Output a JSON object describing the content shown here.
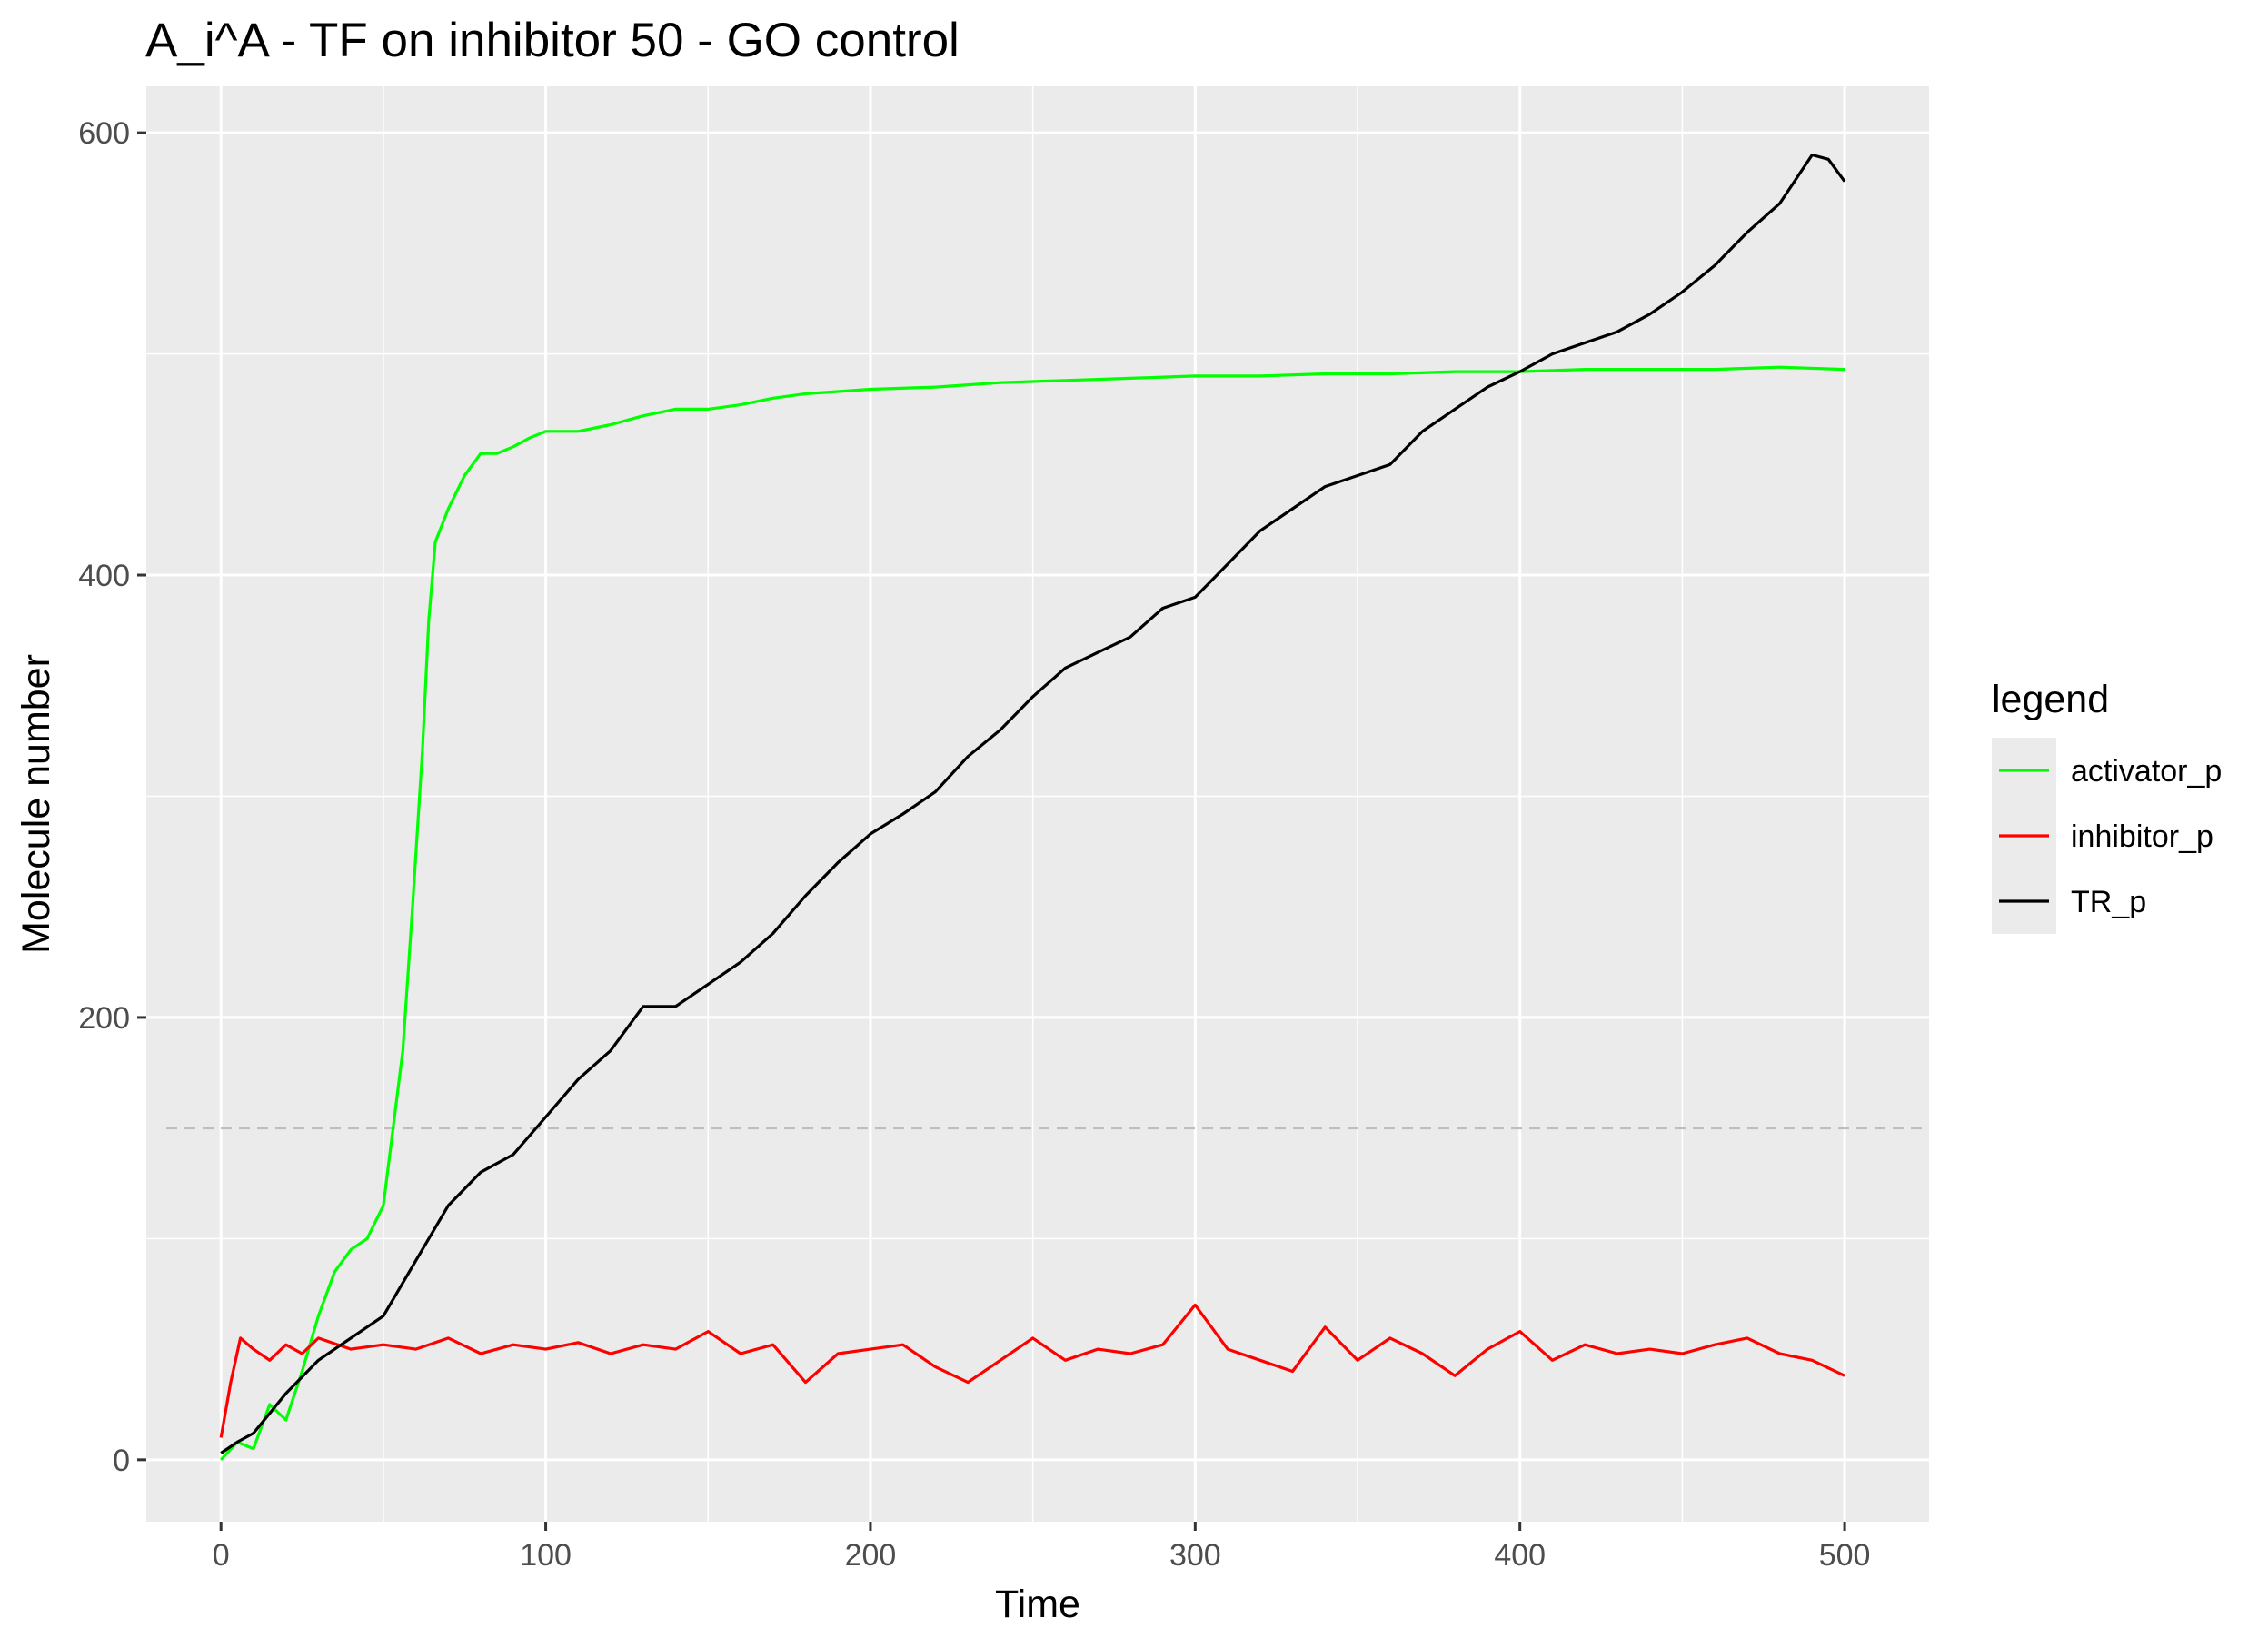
{
  "chart_data": {
    "type": "line",
    "title": "A_i^A - TF on inhibitor 50 - GO control",
    "xlabel": "Time",
    "ylabel": "Molecule number",
    "xlim": [
      -23,
      526
    ],
    "ylim": [
      -28,
      621
    ],
    "x_ticks": [
      0,
      100,
      200,
      300,
      400,
      500
    ],
    "y_ticks": [
      0,
      200,
      400,
      600
    ],
    "x_tick_labels": [
      "0",
      "100",
      "200",
      "300",
      "400",
      "500"
    ],
    "y_tick_labels": [
      "0",
      "200",
      "400",
      "600"
    ],
    "grid": true,
    "reference_line": {
      "y": 150,
      "style": "dashed",
      "color": "#bebebe"
    },
    "legend": {
      "title": "legend",
      "position": "right"
    },
    "series": [
      {
        "name": "activator_p",
        "color": "#00ff00",
        "points": [
          [
            0,
            0
          ],
          [
            5,
            8
          ],
          [
            10,
            5
          ],
          [
            15,
            25
          ],
          [
            20,
            18
          ],
          [
            25,
            40
          ],
          [
            30,
            65
          ],
          [
            35,
            85
          ],
          [
            40,
            95
          ],
          [
            45,
            100
          ],
          [
            50,
            115
          ],
          [
            53,
            150
          ],
          [
            56,
            185
          ],
          [
            59,
            250
          ],
          [
            62,
            320
          ],
          [
            64,
            380
          ],
          [
            66,
            415
          ],
          [
            70,
            430
          ],
          [
            75,
            445
          ],
          [
            80,
            455
          ],
          [
            85,
            455
          ],
          [
            90,
            458
          ],
          [
            95,
            462
          ],
          [
            100,
            465
          ],
          [
            110,
            465
          ],
          [
            120,
            468
          ],
          [
            130,
            472
          ],
          [
            140,
            475
          ],
          [
            150,
            475
          ],
          [
            160,
            477
          ],
          [
            170,
            480
          ],
          [
            180,
            482
          ],
          [
            190,
            483
          ],
          [
            200,
            484
          ],
          [
            220,
            485
          ],
          [
            240,
            487
          ],
          [
            260,
            488
          ],
          [
            280,
            489
          ],
          [
            300,
            490
          ],
          [
            320,
            490
          ],
          [
            340,
            491
          ],
          [
            360,
            491
          ],
          [
            380,
            492
          ],
          [
            400,
            492
          ],
          [
            420,
            493
          ],
          [
            440,
            493
          ],
          [
            460,
            493
          ],
          [
            480,
            494
          ],
          [
            500,
            493
          ]
        ]
      },
      {
        "name": "inhibitor_p",
        "color": "#ff0000",
        "points": [
          [
            0,
            10
          ],
          [
            3,
            35
          ],
          [
            6,
            55
          ],
          [
            10,
            50
          ],
          [
            15,
            45
          ],
          [
            20,
            52
          ],
          [
            25,
            48
          ],
          [
            30,
            55
          ],
          [
            40,
            50
          ],
          [
            50,
            52
          ],
          [
            60,
            50
          ],
          [
            70,
            55
          ],
          [
            80,
            48
          ],
          [
            90,
            52
          ],
          [
            100,
            50
          ],
          [
            110,
            53
          ],
          [
            120,
            48
          ],
          [
            130,
            52
          ],
          [
            140,
            50
          ],
          [
            150,
            58
          ],
          [
            160,
            48
          ],
          [
            170,
            52
          ],
          [
            180,
            35
          ],
          [
            190,
            48
          ],
          [
            200,
            50
          ],
          [
            210,
            52
          ],
          [
            220,
            42
          ],
          [
            230,
            35
          ],
          [
            240,
            45
          ],
          [
            250,
            55
          ],
          [
            260,
            45
          ],
          [
            270,
            50
          ],
          [
            280,
            48
          ],
          [
            290,
            52
          ],
          [
            300,
            70
          ],
          [
            310,
            50
          ],
          [
            320,
            45
          ],
          [
            330,
            40
          ],
          [
            340,
            60
          ],
          [
            350,
            45
          ],
          [
            360,
            55
          ],
          [
            370,
            48
          ],
          [
            380,
            38
          ],
          [
            390,
            50
          ],
          [
            400,
            58
          ],
          [
            410,
            45
          ],
          [
            420,
            52
          ],
          [
            430,
            48
          ],
          [
            440,
            50
          ],
          [
            450,
            48
          ],
          [
            460,
            52
          ],
          [
            470,
            55
          ],
          [
            480,
            48
          ],
          [
            490,
            45
          ],
          [
            500,
            38
          ]
        ]
      },
      {
        "name": "TR_p",
        "color": "#000000",
        "points": [
          [
            0,
            3
          ],
          [
            5,
            8
          ],
          [
            10,
            12
          ],
          [
            20,
            30
          ],
          [
            30,
            45
          ],
          [
            40,
            55
          ],
          [
            50,
            65
          ],
          [
            60,
            90
          ],
          [
            70,
            115
          ],
          [
            80,
            130
          ],
          [
            90,
            138
          ],
          [
            100,
            155
          ],
          [
            110,
            172
          ],
          [
            120,
            185
          ],
          [
            130,
            205
          ],
          [
            140,
            205
          ],
          [
            150,
            215
          ],
          [
            160,
            225
          ],
          [
            170,
            238
          ],
          [
            180,
            255
          ],
          [
            190,
            270
          ],
          [
            200,
            283
          ],
          [
            210,
            292
          ],
          [
            220,
            302
          ],
          [
            230,
            318
          ],
          [
            240,
            330
          ],
          [
            250,
            345
          ],
          [
            260,
            358
          ],
          [
            270,
            365
          ],
          [
            280,
            372
          ],
          [
            290,
            385
          ],
          [
            300,
            390
          ],
          [
            310,
            405
          ],
          [
            320,
            420
          ],
          [
            330,
            430
          ],
          [
            340,
            440
          ],
          [
            350,
            445
          ],
          [
            360,
            450
          ],
          [
            370,
            465
          ],
          [
            380,
            475
          ],
          [
            390,
            485
          ],
          [
            400,
            492
          ],
          [
            410,
            500
          ],
          [
            420,
            505
          ],
          [
            430,
            510
          ],
          [
            440,
            518
          ],
          [
            450,
            528
          ],
          [
            460,
            540
          ],
          [
            470,
            555
          ],
          [
            480,
            568
          ],
          [
            490,
            590
          ],
          [
            495,
            588
          ],
          [
            500,
            578
          ]
        ]
      }
    ]
  }
}
